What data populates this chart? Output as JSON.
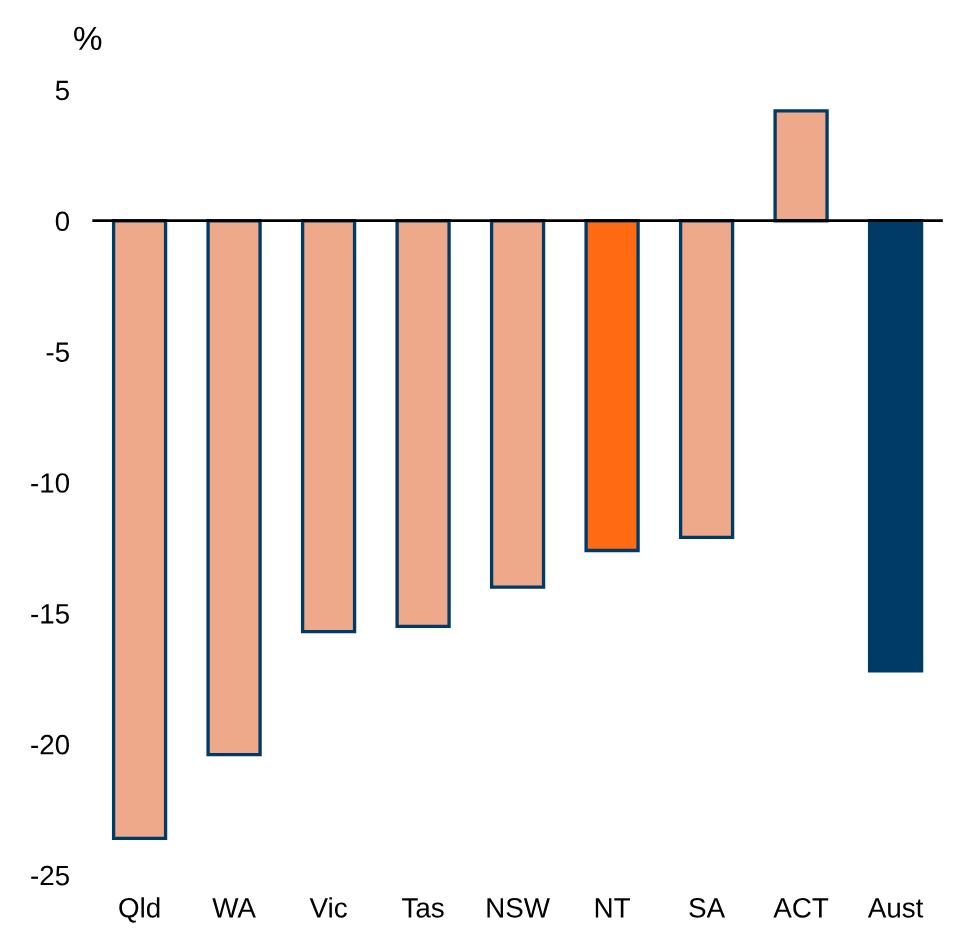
{
  "chart_data": {
    "type": "bar",
    "ylabel": "%",
    "categories": [
      "Qld",
      "WA",
      "Vic",
      "Tas",
      "NSW",
      "NT",
      "SA",
      "ACT",
      "Aust"
    ],
    "values": [
      -23.6,
      -20.4,
      -15.7,
      -15.5,
      -14.0,
      -12.6,
      -12.1,
      4.2,
      -17.2
    ],
    "colors": [
      "#eda98a",
      "#eda98a",
      "#eda98a",
      "#eda98a",
      "#eda98a",
      "#ff6a13",
      "#eda98a",
      "#eda98a",
      "#003a66"
    ],
    "ylim": [
      -25,
      5
    ],
    "yticks": [
      -25,
      -20,
      -15,
      -10,
      -5,
      0,
      5
    ],
    "ref_lines": [
      {
        "axis": "y",
        "value": 0,
        "color": "#000000"
      }
    ],
    "grid": false,
    "legend": false
  }
}
